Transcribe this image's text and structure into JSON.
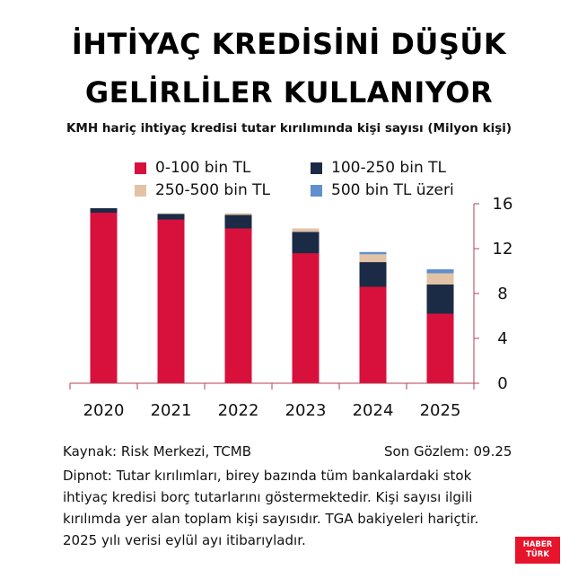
{
  "header": {
    "title_line1": "İHTİYAÇ KREDİSİNİ DÜŞÜK",
    "title_line2": "GELİRLİLER KULLANIYOR",
    "subtitle": "KMH hariç ihtiyaç kredisi tutar kırılımında kişi sayısı (Milyon kişi)"
  },
  "chart_data": {
    "type": "bar",
    "stacked": true,
    "categories": [
      "2020",
      "2021",
      "2022",
      "2023",
      "2024",
      "2025"
    ],
    "series": [
      {
        "name": "0-100 bin TL",
        "color": "#d7103c",
        "values": [
          15.2,
          14.6,
          13.8,
          11.6,
          8.6,
          6.2
        ]
      },
      {
        "name": "100-250 bin TL",
        "color": "#1b2b45",
        "values": [
          0.4,
          0.5,
          1.2,
          1.9,
          2.2,
          2.6
        ]
      },
      {
        "name": "250-500 bin TL",
        "color": "#e2c3a6",
        "values": [
          0.0,
          0.05,
          0.15,
          0.3,
          0.7,
          1.0
        ]
      },
      {
        "name": "500 bin TL üzeri",
        "color": "#5f8fcd",
        "values": [
          0.0,
          0.0,
          0.0,
          0.0,
          0.2,
          0.35
        ]
      }
    ],
    "yticks": [
      "0",
      "4",
      "8",
      "12",
      "16"
    ],
    "ylim": [
      0,
      16
    ],
    "grid": false,
    "legend_position": "top"
  },
  "footer": {
    "source": "Kaynak: Risk Merkezi, TCMB",
    "last_observation": "Son Gözlem: 09.25",
    "footnote": "Dipnot: Tutar kırılımları, birey bazında tüm bankalardaki stok ihtiyaç kredisi borç tutarlarını göstermektedir. Kişi sayısı ilgili kırılımda yer alan toplam kişi sayısıdır. TGA bakiyeleri hariçtir. 2025 yılı verisi eylül ayı itibarıyladır.",
    "logo_line1": "HABER",
    "logo_line2": "TÜRK"
  },
  "colors": {
    "axis": "#b04050",
    "text": "#111111",
    "logo_bg": "#e8142b"
  }
}
